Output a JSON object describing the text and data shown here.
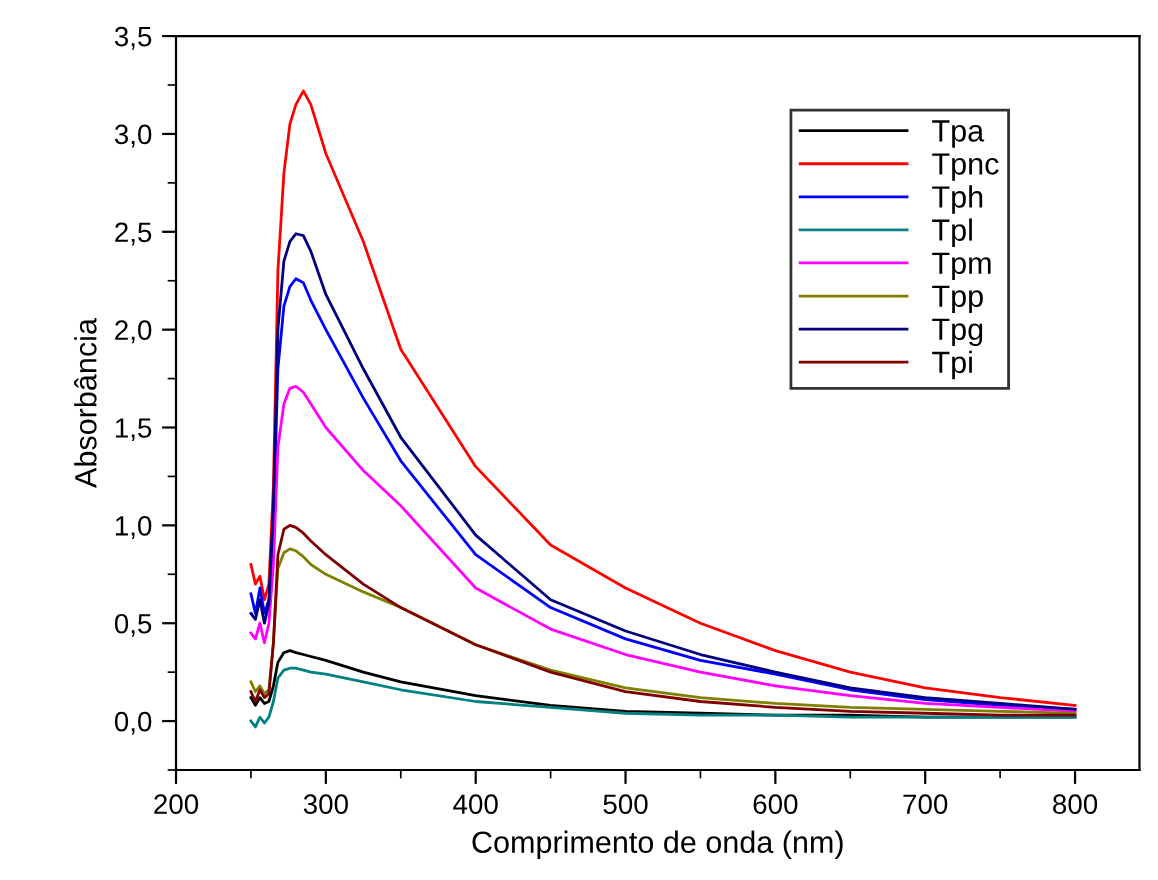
{
  "chart_data": {
    "type": "line",
    "xlabel": "Comprimento de onda (nm)",
    "ylabel": "Absorbância",
    "x": [
      250,
      253,
      256,
      259,
      262,
      265,
      268,
      272,
      276,
      280,
      285,
      290,
      300,
      325,
      350,
      400,
      450,
      500,
      550,
      600,
      650,
      700,
      750,
      800
    ],
    "xlim": [
      200,
      843
    ],
    "xticks": [
      200,
      300,
      400,
      500,
      600,
      700,
      800
    ],
    "ylim": [
      -0.25,
      3.5
    ],
    "yticks": [
      {
        "value": 0,
        "label": "0,0"
      },
      {
        "value": 0.5,
        "label": "0,5"
      },
      {
        "value": 1,
        "label": "1,0"
      },
      {
        "value": 1.5,
        "label": "1,5"
      },
      {
        "value": 2,
        "label": "2,0"
      },
      {
        "value": 2.5,
        "label": "2,5"
      },
      {
        "value": 3,
        "label": "3,0"
      },
      {
        "value": 3.5,
        "label": "3,5"
      }
    ],
    "grid": false,
    "legend": "top right",
    "line_style": "solid",
    "marker": "none",
    "series": [
      {
        "name": "Tpa",
        "color": "#000000",
        "values": [
          0.12,
          0.08,
          0.12,
          0.09,
          0.1,
          0.18,
          0.3,
          0.35,
          0.36,
          0.35,
          0.34,
          0.33,
          0.31,
          0.25,
          0.2,
          0.13,
          0.08,
          0.05,
          0.04,
          0.03,
          0.03,
          0.02,
          0.02,
          0.02
        ]
      },
      {
        "name": "Tpnc",
        "color": "#ff0000",
        "values": [
          0.8,
          0.7,
          0.74,
          0.62,
          0.7,
          1.2,
          2.3,
          2.8,
          3.05,
          3.15,
          3.22,
          3.15,
          2.9,
          2.45,
          1.9,
          1.3,
          0.9,
          0.68,
          0.5,
          0.36,
          0.25,
          0.17,
          0.12,
          0.08
        ]
      },
      {
        "name": "Tph",
        "color": "#0000ff",
        "values": [
          0.65,
          0.55,
          0.68,
          0.55,
          0.62,
          1.0,
          1.8,
          2.12,
          2.22,
          2.26,
          2.24,
          2.15,
          2.0,
          1.65,
          1.33,
          0.85,
          0.58,
          0.42,
          0.31,
          0.24,
          0.16,
          0.11,
          0.08,
          0.06
        ]
      },
      {
        "name": "Tpl",
        "color": "#008080",
        "values": [
          0.0,
          -0.03,
          0.02,
          -0.01,
          0.02,
          0.1,
          0.22,
          0.26,
          0.27,
          0.27,
          0.26,
          0.25,
          0.24,
          0.2,
          0.16,
          0.1,
          0.07,
          0.04,
          0.03,
          0.03,
          0.02,
          0.02,
          0.02,
          0.02
        ]
      },
      {
        "name": "Tpm",
        "color": "#ff00ff",
        "values": [
          0.45,
          0.42,
          0.5,
          0.4,
          0.5,
          0.8,
          1.4,
          1.62,
          1.7,
          1.71,
          1.68,
          1.62,
          1.5,
          1.28,
          1.1,
          0.68,
          0.47,
          0.34,
          0.25,
          0.18,
          0.13,
          0.09,
          0.07,
          0.05
        ]
      },
      {
        "name": "Tpp",
        "color": "#808000",
        "values": [
          0.2,
          0.15,
          0.18,
          0.14,
          0.16,
          0.4,
          0.78,
          0.86,
          0.88,
          0.87,
          0.84,
          0.8,
          0.75,
          0.66,
          0.58,
          0.39,
          0.26,
          0.17,
          0.12,
          0.09,
          0.07,
          0.06,
          0.05,
          0.04
        ]
      },
      {
        "name": "Tpg",
        "color": "#000080",
        "values": [
          0.55,
          0.52,
          0.62,
          0.5,
          0.6,
          1.1,
          2.0,
          2.35,
          2.45,
          2.49,
          2.48,
          2.4,
          2.18,
          1.8,
          1.45,
          0.95,
          0.62,
          0.46,
          0.34,
          0.25,
          0.17,
          0.12,
          0.09,
          0.06
        ]
      },
      {
        "name": "Tpi",
        "color": "#800000",
        "values": [
          0.15,
          0.1,
          0.16,
          0.12,
          0.14,
          0.4,
          0.85,
          0.98,
          1.0,
          0.99,
          0.96,
          0.92,
          0.85,
          0.7,
          0.58,
          0.39,
          0.25,
          0.15,
          0.1,
          0.07,
          0.05,
          0.04,
          0.03,
          0.03
        ]
      }
    ]
  }
}
